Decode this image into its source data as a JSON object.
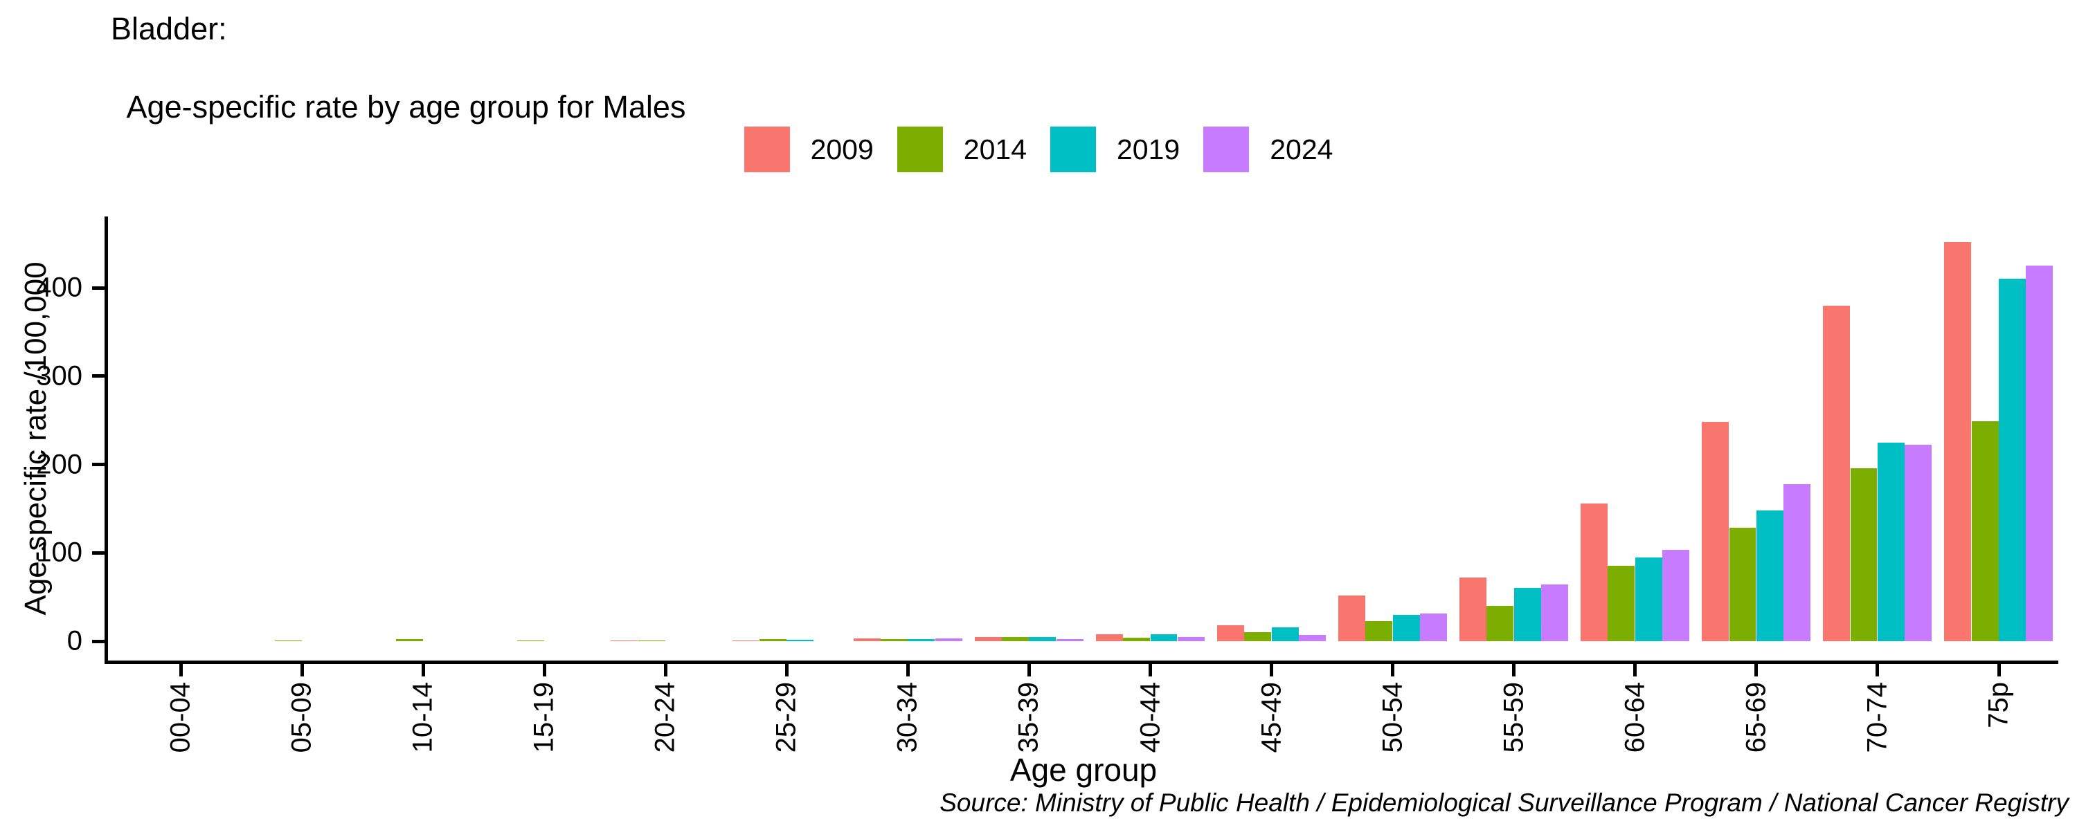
{
  "title": {
    "line1": "Bladder:",
    "line2": "Age-specific rate by age group for Males"
  },
  "legend": [
    {
      "label": "2009",
      "color": "#F8766D"
    },
    {
      "label": "2014",
      "color": "#7CAE00"
    },
    {
      "label": "2019",
      "color": "#00BFC4"
    },
    {
      "label": "2024",
      "color": "#C77CFF"
    }
  ],
  "chart_data": {
    "type": "bar",
    "title": "Bladder: Age-specific rate by age group for Males",
    "xlabel": "Age group",
    "ylabel": "Age-specific rate /100,000",
    "categories": [
      "00-04",
      "05-09",
      "10-14",
      "15-19",
      "20-24",
      "25-29",
      "30-34",
      "35-39",
      "40-44",
      "45-49",
      "50-54",
      "55-59",
      "60-64",
      "65-69",
      "70-74",
      "75p"
    ],
    "series": [
      {
        "name": "2009",
        "color": "#F8766D",
        "values": [
          0,
          0,
          0,
          0,
          1,
          1,
          3.5,
          4.5,
          8,
          18,
          52,
          72,
          156,
          248,
          380,
          452
        ]
      },
      {
        "name": "2014",
        "color": "#7CAE00",
        "values": [
          0,
          1,
          2,
          1,
          1,
          2,
          2.5,
          4.5,
          4,
          10,
          23,
          40,
          85,
          128,
          196,
          249
        ]
      },
      {
        "name": "2019",
        "color": "#00BFC4",
        "values": [
          0,
          0,
          0,
          0,
          0,
          1.5,
          2,
          5,
          8,
          16,
          30,
          60,
          95,
          148,
          225,
          410
        ]
      },
      {
        "name": "2024",
        "color": "#C77CFF",
        "values": [
          0,
          0,
          0,
          0,
          0,
          0,
          3,
          2.5,
          5,
          7,
          31,
          64,
          103,
          178,
          222,
          425
        ]
      }
    ],
    "yticks": [
      0,
      100,
      200,
      300,
      400
    ],
    "ylim": [
      -22,
      480
    ],
    "grid": false,
    "legend_position": "top-center",
    "bar_group_width": 0.9
  },
  "source": "Source: Ministry of Public Health / Epidemiological Surveillance Program / National Cancer Registry"
}
